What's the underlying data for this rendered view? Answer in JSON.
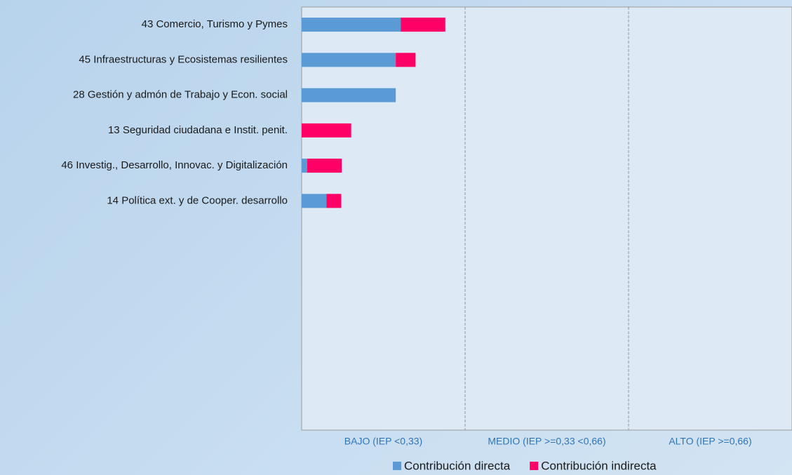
{
  "chart_data": {
    "type": "hbar_stacked",
    "categories": [
      "43 Comercio, Turismo y Pymes",
      "45 Infraestructuras y Ecosistemas resilientes",
      "28 Gestión y admón de Trabajo y Econ. social",
      "13 Seguridad ciudadana e Instit. penit.",
      "46 Investig., Desarrollo, Innovac. y Digitalización",
      "14 Política ext. y de Cooper. desarrollo"
    ],
    "series": [
      {
        "name": "Contribución directa",
        "color": "#5b9bd5",
        "values": [
          0.2,
          0.19,
          0.19,
          0,
          0.011,
          0.05
        ]
      },
      {
        "name": "Contribución indirecta",
        "color": "#ff0066",
        "values": [
          0.09,
          0.04,
          0,
          0.1,
          0.07,
          0.03
        ]
      }
    ],
    "xlim": [
      0,
      0.99
    ],
    "zones": [
      {
        "label": "BAJO (IEP <0,33)",
        "from": 0,
        "to": 0.33
      },
      {
        "label": "MEDIO (IEP >=0,33 <0,66)",
        "from": 0.33,
        "to": 0.66
      },
      {
        "label": "ALTO (IEP >=0,66)",
        "from": 0.66,
        "to": 0.99
      }
    ],
    "legend": "bottom"
  }
}
